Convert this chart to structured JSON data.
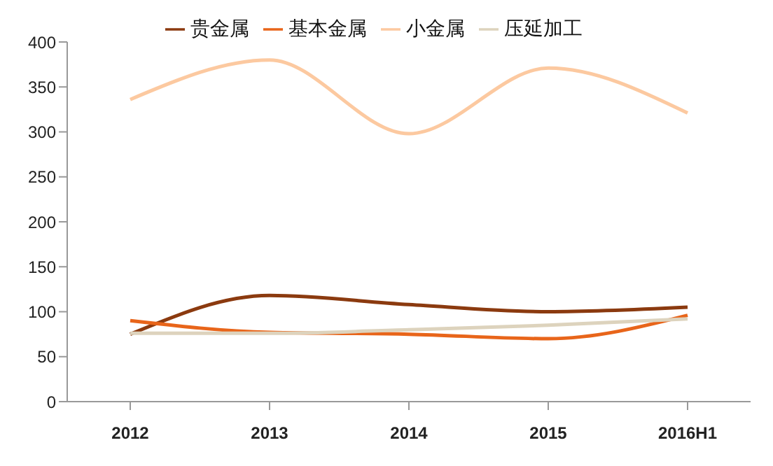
{
  "chart_data": {
    "type": "line",
    "categories": [
      "2012",
      "2013",
      "2014",
      "2015",
      "2016H1"
    ],
    "series": [
      {
        "name": "贵金属",
        "color": "#8b3a0f",
        "values": [
          75,
          118,
          108,
          100,
          105
        ]
      },
      {
        "name": "基本金属",
        "color": "#e8651a",
        "values": [
          90,
          77,
          75,
          70,
          96
        ]
      },
      {
        "name": "小金属",
        "color": "#fcc9a0",
        "values": [
          336,
          380,
          298,
          371,
          321
        ]
      },
      {
        "name": "压延加工",
        "color": "#ddd3bd",
        "values": [
          76,
          76,
          80,
          85,
          92
        ]
      }
    ],
    "ylim": [
      0,
      400
    ],
    "yticks": [
      0,
      50,
      100,
      150,
      200,
      250,
      300,
      350,
      400
    ],
    "grid": false,
    "legend": "top",
    "marker": "none",
    "line_style": "solid"
  }
}
